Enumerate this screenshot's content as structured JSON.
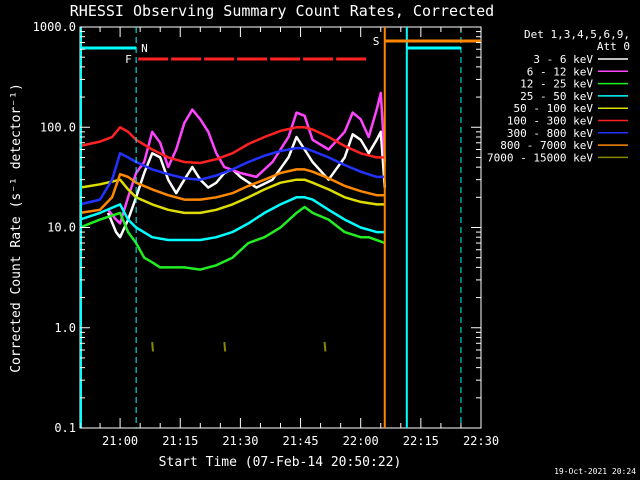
{
  "chart_data": {
    "type": "line",
    "title": "RHESSI Observing Summary Count Rates, Corrected",
    "xlabel": "Start Time (07-Feb-14 20:50:22)",
    "ylabel": "Corrected Count Rate (s⁻¹ detector⁻¹)",
    "yscale": "log",
    "ylim": [
      0.1,
      1000
    ],
    "xlim_minutes": [
      0,
      100
    ],
    "x_ticks": [
      {
        "label": "21:00",
        "m": 10
      },
      {
        "label": "21:15",
        "m": 25
      },
      {
        "label": "21:30",
        "m": 40
      },
      {
        "label": "21:45",
        "m": 55
      },
      {
        "label": "22:00",
        "m": 70
      },
      {
        "label": "22:15",
        "m": 85
      },
      {
        "label": "22:30",
        "m": 100
      }
    ],
    "y_ticks": [
      {
        "label": "0.1",
        "v": 0.1
      },
      {
        "label": "1.0",
        "v": 1
      },
      {
        "label": "10.0",
        "v": 10
      },
      {
        "label": "100.0",
        "v": 100
      },
      {
        "label": "1000.0",
        "v": 1000
      }
    ],
    "legend_header": [
      "Det 1,3,4,5,6,9,",
      "Att 0"
    ],
    "grid": false,
    "series": [
      {
        "name": "3 - 6 keV",
        "color": "#ffffff",
        "points": [
          [
            7,
            14
          ],
          [
            9,
            9
          ],
          [
            10,
            8
          ],
          [
            12,
            12
          ],
          [
            14,
            20
          ],
          [
            16,
            35
          ],
          [
            18,
            55
          ],
          [
            20,
            50
          ],
          [
            22,
            30
          ],
          [
            24,
            22
          ],
          [
            26,
            30
          ],
          [
            28,
            40
          ],
          [
            30,
            30
          ],
          [
            32,
            25
          ],
          [
            34,
            28
          ],
          [
            36,
            35
          ],
          [
            38,
            38
          ],
          [
            40,
            32
          ],
          [
            44,
            25
          ],
          [
            48,
            30
          ],
          [
            52,
            50
          ],
          [
            54,
            80
          ],
          [
            56,
            60
          ],
          [
            58,
            45
          ],
          [
            62,
            30
          ],
          [
            66,
            50
          ],
          [
            68,
            85
          ],
          [
            70,
            75
          ],
          [
            72,
            55
          ],
          [
            74,
            75
          ],
          [
            75,
            90
          ],
          [
            76,
            25
          ]
        ]
      },
      {
        "name": "6 - 12 keV",
        "color": "#ff44ff",
        "points": [
          [
            7,
            15
          ],
          [
            9,
            12
          ],
          [
            10,
            11
          ],
          [
            12,
            20
          ],
          [
            14,
            35
          ],
          [
            16,
            45
          ],
          [
            18,
            90
          ],
          [
            20,
            70
          ],
          [
            22,
            40
          ],
          [
            24,
            60
          ],
          [
            26,
            110
          ],
          [
            28,
            150
          ],
          [
            30,
            120
          ],
          [
            32,
            90
          ],
          [
            34,
            55
          ],
          [
            36,
            40
          ],
          [
            40,
            35
          ],
          [
            44,
            32
          ],
          [
            48,
            45
          ],
          [
            52,
            80
          ],
          [
            54,
            140
          ],
          [
            56,
            130
          ],
          [
            58,
            75
          ],
          [
            62,
            60
          ],
          [
            66,
            90
          ],
          [
            68,
            140
          ],
          [
            70,
            120
          ],
          [
            72,
            80
          ],
          [
            74,
            150
          ],
          [
            75,
            220
          ],
          [
            76,
            45
          ]
        ]
      },
      {
        "name": "12 - 25 keV",
        "color": "#22ee22",
        "points": [
          [
            0,
            10
          ],
          [
            5,
            12
          ],
          [
            10,
            14
          ],
          [
            12,
            9
          ],
          [
            14,
            7
          ],
          [
            16,
            5
          ],
          [
            18,
            4.5
          ],
          [
            20,
            4
          ],
          [
            22,
            4
          ],
          [
            26,
            4
          ],
          [
            30,
            3.8
          ],
          [
            34,
            4.2
          ],
          [
            38,
            5
          ],
          [
            42,
            7
          ],
          [
            46,
            8
          ],
          [
            50,
            10
          ],
          [
            54,
            14
          ],
          [
            56,
            16
          ],
          [
            58,
            14
          ],
          [
            62,
            12
          ],
          [
            66,
            9
          ],
          [
            70,
            8
          ],
          [
            72,
            8
          ],
          [
            76,
            7
          ]
        ]
      },
      {
        "name": "25 - 50 keV",
        "color": "#00ffff",
        "points": [
          [
            0,
            12
          ],
          [
            5,
            14
          ],
          [
            10,
            17
          ],
          [
            12,
            12
          ],
          [
            14,
            10
          ],
          [
            18,
            8
          ],
          [
            22,
            7.5
          ],
          [
            26,
            7.5
          ],
          [
            30,
            7.5
          ],
          [
            34,
            8
          ],
          [
            38,
            9
          ],
          [
            42,
            11
          ],
          [
            46,
            14
          ],
          [
            50,
            17
          ],
          [
            54,
            20
          ],
          [
            56,
            20
          ],
          [
            58,
            19
          ],
          [
            62,
            15
          ],
          [
            66,
            12
          ],
          [
            70,
            10
          ],
          [
            74,
            9
          ],
          [
            76,
            9
          ]
        ]
      },
      {
        "name": "50 - 100 keV",
        "color": "#dddd00",
        "points": [
          [
            0,
            25
          ],
          [
            5,
            27
          ],
          [
            10,
            30
          ],
          [
            12,
            24
          ],
          [
            14,
            20
          ],
          [
            18,
            17
          ],
          [
            22,
            15
          ],
          [
            26,
            14
          ],
          [
            30,
            14
          ],
          [
            34,
            15
          ],
          [
            38,
            17
          ],
          [
            42,
            20
          ],
          [
            46,
            24
          ],
          [
            50,
            28
          ],
          [
            54,
            30
          ],
          [
            56,
            30
          ],
          [
            58,
            28
          ],
          [
            62,
            24
          ],
          [
            66,
            20
          ],
          [
            70,
            18
          ],
          [
            74,
            17
          ],
          [
            76,
            17
          ]
        ]
      },
      {
        "name": "100 - 300 keV",
        "color": "#ff2222",
        "points": [
          [
            0,
            65
          ],
          [
            5,
            72
          ],
          [
            8,
            80
          ],
          [
            10,
            100
          ],
          [
            12,
            90
          ],
          [
            14,
            75
          ],
          [
            18,
            60
          ],
          [
            22,
            50
          ],
          [
            26,
            45
          ],
          [
            30,
            44
          ],
          [
            34,
            48
          ],
          [
            38,
            55
          ],
          [
            42,
            68
          ],
          [
            46,
            80
          ],
          [
            50,
            92
          ],
          [
            54,
            100
          ],
          [
            56,
            100
          ],
          [
            58,
            95
          ],
          [
            62,
            80
          ],
          [
            66,
            65
          ],
          [
            70,
            55
          ],
          [
            74,
            50
          ],
          [
            76,
            50
          ]
        ]
      },
      {
        "name": "300 - 800 keV",
        "color": "#2233ff",
        "points": [
          [
            0,
            17
          ],
          [
            5,
            19
          ],
          [
            8,
            30
          ],
          [
            10,
            55
          ],
          [
            12,
            50
          ],
          [
            14,
            45
          ],
          [
            18,
            38
          ],
          [
            22,
            34
          ],
          [
            26,
            31
          ],
          [
            30,
            30
          ],
          [
            34,
            33
          ],
          [
            38,
            38
          ],
          [
            42,
            45
          ],
          [
            46,
            52
          ],
          [
            50,
            58
          ],
          [
            54,
            62
          ],
          [
            56,
            62
          ],
          [
            58,
            58
          ],
          [
            62,
            50
          ],
          [
            66,
            42
          ],
          [
            70,
            36
          ],
          [
            74,
            32
          ],
          [
            76,
            32
          ]
        ]
      },
      {
        "name": "800 - 7000 keV",
        "color": "#ff8800",
        "points": [
          [
            0,
            14
          ],
          [
            5,
            15
          ],
          [
            8,
            20
          ],
          [
            10,
            34
          ],
          [
            12,
            32
          ],
          [
            14,
            28
          ],
          [
            18,
            24
          ],
          [
            22,
            21
          ],
          [
            26,
            19
          ],
          [
            30,
            19
          ],
          [
            34,
            20
          ],
          [
            38,
            22
          ],
          [
            42,
            26
          ],
          [
            46,
            30
          ],
          [
            50,
            35
          ],
          [
            54,
            38
          ],
          [
            56,
            38
          ],
          [
            58,
            36
          ],
          [
            62,
            31
          ],
          [
            66,
            26
          ],
          [
            70,
            23
          ],
          [
            74,
            21
          ],
          [
            76,
            21
          ]
        ]
      },
      {
        "name": "7000 - 15000 keV",
        "color": "#888800",
        "points": [
          [
            18,
            0.72
          ],
          [
            18.2,
            0.58
          ],
          [
            36,
            0.72
          ],
          [
            36.2,
            0.58
          ],
          [
            61,
            0.72
          ],
          [
            61.2,
            0.58
          ]
        ]
      }
    ],
    "annotations": [
      {
        "text": "N",
        "color": "#00ffff",
        "m": 14
      },
      {
        "text": "F",
        "color": "#ff2222",
        "m": 12
      },
      {
        "text": "S",
        "color": "#ff8800",
        "m": 74
      }
    ],
    "footer_date": "19-Oct-2021 20:24"
  }
}
